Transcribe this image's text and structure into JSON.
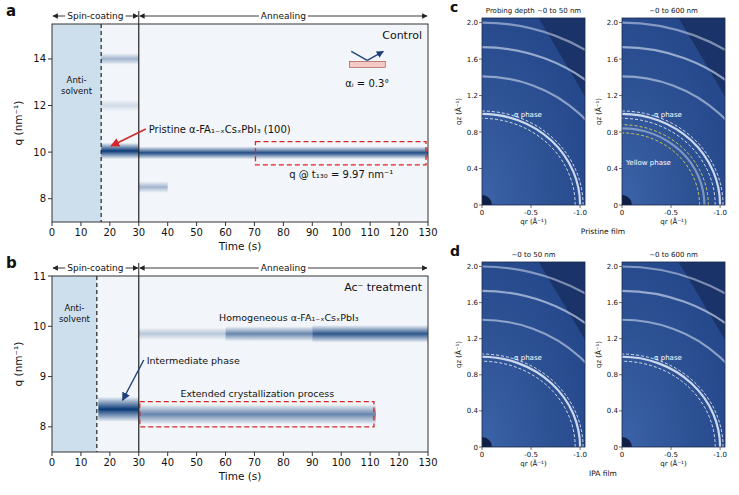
{
  "chart_data": [
    {
      "type": "heatmap",
      "panel_label": "a",
      "condition": "Control",
      "stage_labels": [
        "Spin-coating",
        "Annealing"
      ],
      "xlabel": "Time (s)",
      "ylabel": "q (nm⁻¹)",
      "xlim": [
        0,
        130
      ],
      "xticks": [
        0,
        10,
        20,
        30,
        40,
        50,
        60,
        70,
        80,
        90,
        100,
        110,
        120,
        130
      ],
      "ylim": [
        7,
        15.5
      ],
      "yticks": [
        8,
        10,
        12,
        14
      ],
      "shaded": [
        0,
        17
      ],
      "events": [
        {
          "x": 17,
          "line_style": "dashed"
        },
        {
          "x": 30,
          "line_style": "solid"
        }
      ],
      "bands": [
        {
          "t_start": 17,
          "t_end": 30,
          "q": 10.05,
          "q_width": 0.7,
          "intensity": 1.0
        },
        {
          "t_start": 30,
          "t_end": 130,
          "q": 9.97,
          "q_width": 0.55,
          "intensity": 0.9
        },
        {
          "t_start": 17,
          "t_end": 30,
          "q": 14.0,
          "q_width": 0.5,
          "intensity": 0.35
        },
        {
          "t_start": 30,
          "t_end": 40,
          "q": 8.5,
          "q_width": 0.5,
          "intensity": 0.35
        },
        {
          "t_start": 17,
          "t_end": 30,
          "q": 12.0,
          "q_width": 0.5,
          "intensity": 0.15
        }
      ],
      "highlight": {
        "x": [
          70,
          130
        ],
        "y": [
          9.45,
          10.45
        ],
        "color": "#d62728"
      },
      "annotations": [
        "Anti-solvent",
        "Pristine α-FA₁₋ₓCsₓPbI₃ (100)",
        "αᵢ = 0.3°",
        "q @ t₁₃₀ = 9.97 nm⁻¹"
      ]
    },
    {
      "type": "heatmap",
      "panel_label": "b",
      "condition": "Ac⁻ treatment",
      "stage_labels": [
        "Spin-coating",
        "Annealing"
      ],
      "xlabel": "Time (s)",
      "ylabel": "q (nm⁻¹)",
      "xlim": [
        0,
        130
      ],
      "xticks": [
        0,
        10,
        20,
        30,
        40,
        50,
        60,
        70,
        80,
        90,
        100,
        110,
        120,
        130
      ],
      "ylim": [
        7.5,
        11
      ],
      "yticks": [
        8,
        9,
        10,
        11
      ],
      "shaded": [
        0,
        15.5
      ],
      "events": [
        {
          "x": 15.5,
          "line_style": "dashed"
        },
        {
          "x": 30,
          "line_style": "solid"
        }
      ],
      "bands": [
        {
          "t_start": 16,
          "t_end": 30,
          "q": 8.35,
          "q_width": 0.5,
          "intensity": 1.0
        },
        {
          "t_start": 30,
          "t_end": 112,
          "q": 8.25,
          "q_width": 0.4,
          "intensity": 0.6
        },
        {
          "t_start": 30,
          "t_end": 60,
          "q": 9.85,
          "q_width": 0.25,
          "intensity": 0.25
        },
        {
          "t_start": 60,
          "t_end": 90,
          "q": 9.85,
          "q_width": 0.3,
          "intensity": 0.6
        },
        {
          "t_start": 90,
          "t_end": 130,
          "q": 9.85,
          "q_width": 0.35,
          "intensity": 0.85
        }
      ],
      "highlight": {
        "x": [
          30,
          112
        ],
        "y": [
          8.0,
          8.5
        ],
        "color": "#d62728"
      },
      "annotations": [
        "Anti-solvent",
        "Intermediate phase",
        "Homogeneous α-FA₁₋ₓCsₓPbI₃",
        "Extended crystallization process"
      ]
    },
    {
      "type": "image",
      "panel_label": "c",
      "caption": "Pristine film",
      "title": "Probing depth ~0 to 50 nm",
      "xlabel": "qr (Å⁻¹)",
      "ylabel": "qz (Å⁻¹)",
      "xlim": [
        0,
        -1.05
      ],
      "ylim": [
        0,
        2.05
      ],
      "xticks": [
        0,
        -0.5,
        {
          "value": -1.0,
          "label": "-1.0"
        }
      ],
      "yticks": [
        0,
        0.4,
        0.8,
        1.2,
        1.6,
        {
          "value": 2.0,
          "label": "2.0"
        }
      ],
      "rings": [
        {
          "q": 1.0,
          "intensity": 0.9
        },
        {
          "q": 1.41,
          "intensity": 0.55
        },
        {
          "q": 1.73,
          "intensity": 0.6
        },
        {
          "q": 2.0,
          "intensity": 0.5
        }
      ],
      "guides": [
        {
          "q": [
            0.95,
            1.03
          ],
          "color": "#ffffff",
          "label": "α phase"
        }
      ]
    },
    {
      "type": "image",
      "title": "~0 to 600 nm",
      "xlabel": "qr (Å⁻¹)",
      "ylabel": "qz (Å⁻¹)",
      "xlim": [
        0,
        -1.05
      ],
      "ylim": [
        0,
        2.05
      ],
      "xticks": [
        0,
        -0.5,
        {
          "value": -1.0,
          "label": "-1.0"
        }
      ],
      "yticks": [
        0,
        0.4,
        0.8,
        1.2,
        1.6,
        {
          "value": 2.0,
          "label": "2.0"
        }
      ],
      "rings": [
        {
          "q": 0.84,
          "intensity": 0.45
        },
        {
          "q": 1.0,
          "intensity": 0.9
        },
        {
          "q": 1.41,
          "intensity": 0.55
        },
        {
          "q": 1.73,
          "intensity": 0.6
        },
        {
          "q": 2.0,
          "intensity": 0.5
        }
      ],
      "guides": [
        {
          "q": [
            0.95,
            1.03
          ],
          "color": "#ffffff",
          "label": "α phase"
        },
        {
          "q": [
            0.79,
            0.88
          ],
          "color": "#f3e24a",
          "label": "Yellow phase"
        }
      ]
    },
    {
      "type": "image",
      "panel_label": "d",
      "caption": "IPA film",
      "title": "~0 to 50 nm",
      "xlabel": "qr (Å⁻¹)",
      "ylabel": "qz (Å⁻¹)",
      "xlim": [
        0,
        -1.05
      ],
      "ylim": [
        0,
        2.05
      ],
      "xticks": [
        0,
        -0.5,
        {
          "value": -1.0,
          "label": "-1.0"
        }
      ],
      "yticks": [
        0,
        0.4,
        0.8,
        1.2,
        1.6,
        {
          "value": 2.0,
          "label": "2.0"
        }
      ],
      "rings": [
        {
          "q": 1.0,
          "intensity": 0.9
        },
        {
          "q": 1.41,
          "intensity": 0.55
        },
        {
          "q": 1.73,
          "intensity": 0.6
        },
        {
          "q": 2.0,
          "intensity": 0.5
        }
      ],
      "guides": [
        {
          "q": [
            0.95,
            1.03
          ],
          "color": "#ffffff",
          "label": "α phase"
        }
      ]
    },
    {
      "type": "image",
      "title": "~0 to 600 nm",
      "xlabel": "qr (Å⁻¹)",
      "ylabel": "qz (Å⁻¹)",
      "xlim": [
        0,
        -1.05
      ],
      "ylim": [
        0,
        2.05
      ],
      "xticks": [
        0,
        -0.5,
        {
          "value": -1.0,
          "label": "-1.0"
        }
      ],
      "yticks": [
        0,
        0.4,
        0.8,
        1.2,
        1.6,
        {
          "value": 2.0,
          "label": "2.0"
        }
      ],
      "rings": [
        {
          "q": 1.0,
          "intensity": 0.9
        },
        {
          "q": 1.41,
          "intensity": 0.55
        },
        {
          "q": 1.73,
          "intensity": 0.6
        },
        {
          "q": 2.0,
          "intensity": 0.5
        }
      ],
      "guides": [
        {
          "q": [
            0.95,
            1.03
          ],
          "color": "#ffffff",
          "label": "α phase"
        }
      ]
    }
  ]
}
